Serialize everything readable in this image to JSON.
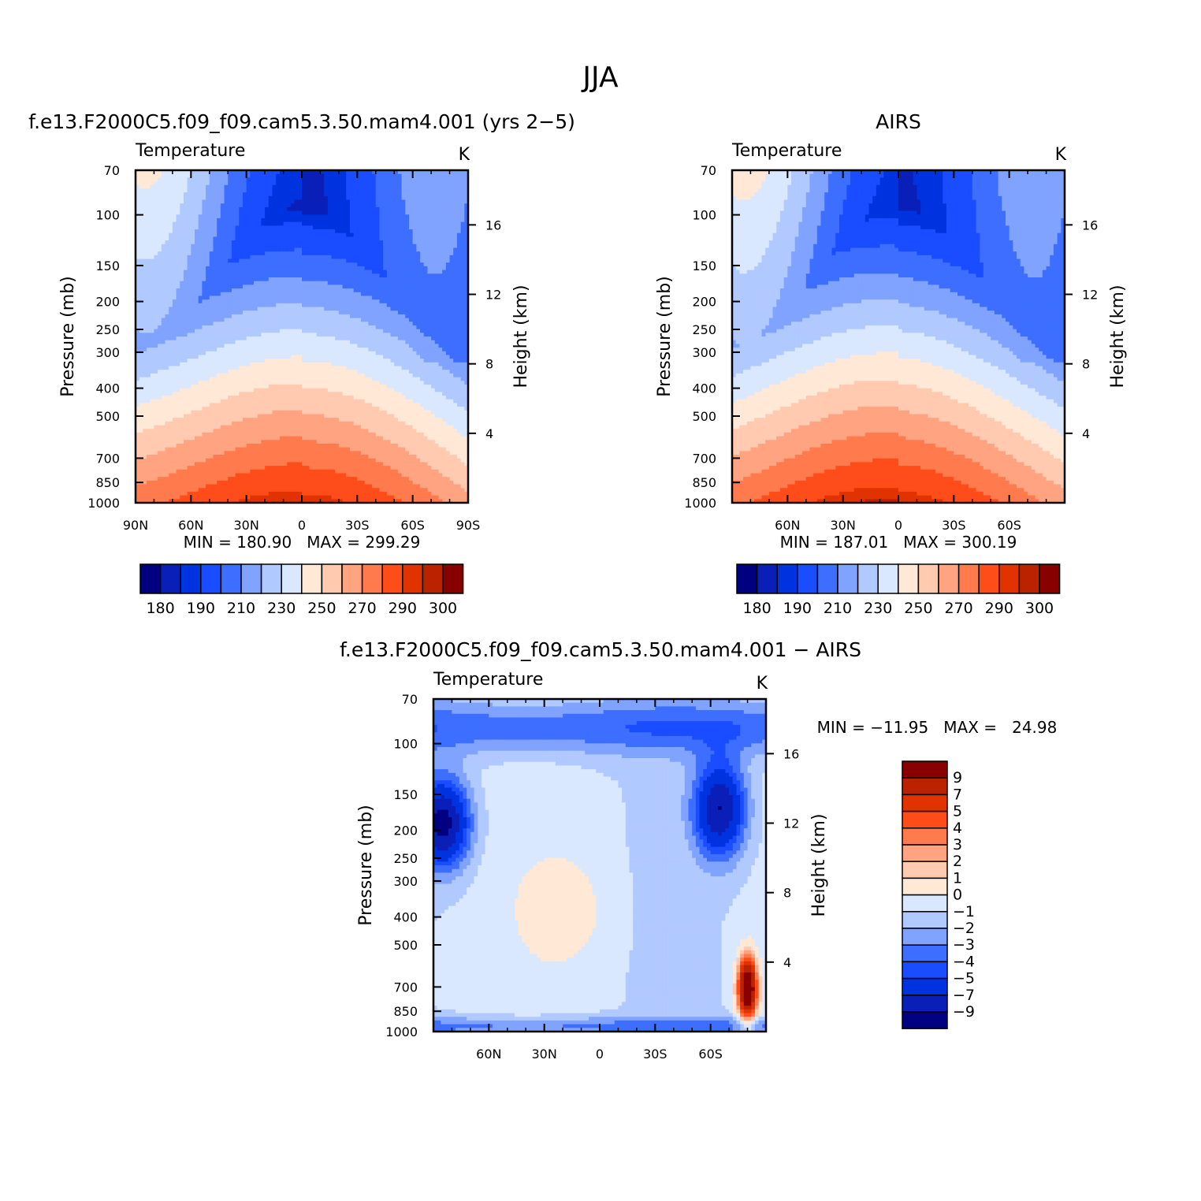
{
  "figure": {
    "title": "JJA"
  },
  "chart_data": [
    {
      "type": "heatmap",
      "title": "f.e13.F2000C5.f09_f09.cam5.3.50.mam4.001 (yrs 2−5)",
      "subtitle_left": "Temperature",
      "subtitle_right": "K",
      "xlabel": "",
      "ylabel": "Pressure (mb)",
      "ylabel_right": "Height (km)",
      "x_ticks": [
        "90N",
        "60N",
        "30N",
        "0",
        "30S",
        "60S",
        "90S"
      ],
      "x_tick_values": [
        90,
        60,
        30,
        0,
        -30,
        -60,
        -90
      ],
      "y_ticks": [
        "70",
        "100",
        "150",
        "200",
        "250",
        "300",
        "400",
        "500",
        "700",
        "850",
        "1000"
      ],
      "y_tick_values": [
        70,
        100,
        150,
        200,
        250,
        300,
        400,
        500,
        700,
        850,
        1000
      ],
      "y_right_ticks": [
        "16",
        "12",
        "8",
        "4"
      ],
      "y_right_tick_values": [
        16,
        12,
        8,
        4
      ],
      "ylim": [
        1000,
        70
      ],
      "xlim": [
        90,
        -90
      ],
      "stats": "MIN = 180.90   MAX = 299.29",
      "colorbar_labels": [
        "180",
        "190",
        "210",
        "230",
        "250",
        "270",
        "290",
        "300"
      ]
    },
    {
      "type": "heatmap",
      "title": "AIRS",
      "subtitle_left": "Temperature",
      "subtitle_right": "K",
      "xlabel": "",
      "ylabel": "Pressure (mb)",
      "ylabel_right": "Height (km)",
      "x_ticks": [
        "60N",
        "30N",
        "0",
        "30S",
        "60S"
      ],
      "x_tick_values": [
        60,
        30,
        0,
        -30,
        -60
      ],
      "y_ticks": [
        "70",
        "100",
        "150",
        "200",
        "250",
        "300",
        "400",
        "500",
        "700",
        "850",
        "1000"
      ],
      "y_tick_values": [
        70,
        100,
        150,
        200,
        250,
        300,
        400,
        500,
        700,
        850,
        1000
      ],
      "y_right_ticks": [
        "16",
        "12",
        "8",
        "4"
      ],
      "y_right_tick_values": [
        16,
        12,
        8,
        4
      ],
      "ylim": [
        1000,
        70
      ],
      "xlim": [
        90,
        -90
      ],
      "stats": "MIN = 187.01   MAX = 300.19",
      "colorbar_labels": [
        "180",
        "190",
        "210",
        "230",
        "250",
        "270",
        "290",
        "300"
      ]
    },
    {
      "type": "heatmap",
      "title": "f.e13.F2000C5.f09_f09.cam5.3.50.mam4.001 − AIRS",
      "subtitle_left": "Temperature",
      "subtitle_right": "K",
      "xlabel": "",
      "ylabel": "Pressure (mb)",
      "ylabel_right": "Height (km)",
      "x_ticks": [
        "60N",
        "30N",
        "0",
        "30S",
        "60S"
      ],
      "x_tick_values": [
        60,
        30,
        0,
        -30,
        -60
      ],
      "y_ticks": [
        "70",
        "100",
        "150",
        "200",
        "250",
        "300",
        "400",
        "500",
        "700",
        "850",
        "1000"
      ],
      "y_tick_values": [
        70,
        100,
        150,
        200,
        250,
        300,
        400,
        500,
        700,
        850,
        1000
      ],
      "y_right_ticks": [
        "16",
        "12",
        "8",
        "4"
      ],
      "y_right_tick_values": [
        16,
        12,
        8,
        4
      ],
      "ylim": [
        1000,
        70
      ],
      "xlim": [
        90,
        -90
      ],
      "stats": "MIN = −11.95   MAX =   24.98",
      "colorbar_labels": [
        "9",
        "7",
        "5",
        "4",
        "3",
        "2",
        "1",
        "0",
        "−1",
        "−2",
        "−3",
        "−4",
        "−5",
        "−7",
        "−9"
      ]
    }
  ],
  "palettes": {
    "abs": [
      "#000080",
      "#0a1fb8",
      "#0033e0",
      "#1a4dff",
      "#3d6eff",
      "#80a3ff",
      "#b0c9ff",
      "#d9e8ff",
      "#ffe8d6",
      "#ffcab0",
      "#ffa380",
      "#ff7a4d",
      "#ff4d1a",
      "#e03300",
      "#bb2200",
      "#880000"
    ],
    "diff": [
      "#000080",
      "#0a1fb8",
      "#0033e0",
      "#1a4dff",
      "#3d6eff",
      "#80a3ff",
      "#b0c9ff",
      "#d9e8ff",
      "#ffe8d6",
      "#ffcab0",
      "#ffa380",
      "#ff7a4d",
      "#ff4d1a",
      "#e03300",
      "#bb2200",
      "#880000"
    ]
  }
}
